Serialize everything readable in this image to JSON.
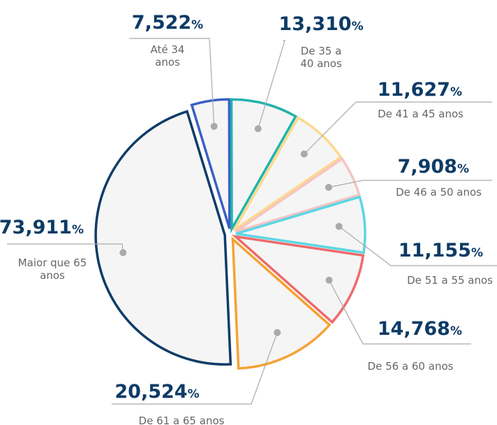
{
  "chart_data": {
    "type": "pie",
    "categories": [
      "Até 34 anos",
      "De 35 a 40 anos",
      "De 41 a 45 anos",
      "De 46 a 50 anos",
      "De 51 a 55 anos",
      "De 56 a 60 anos",
      "De 61 a 65 anos",
      "Maior que 65 anos"
    ],
    "values": [
      7.522,
      13.31,
      11.627,
      7.908,
      11.155,
      14.768,
      20.524,
      73.911
    ],
    "value_labels": [
      "7,522",
      "13,310",
      "11,627",
      "7,908",
      "11,155",
      "14,768",
      "20,524",
      "73,911"
    ],
    "unit": "%",
    "colors": [
      "#3a5fc4",
      "#21b3ac",
      "#fcd98c",
      "#f6c3c3",
      "#5cd6e4",
      "#ee6a6a",
      "#f6a234",
      "#0e3c68"
    ]
  }
}
